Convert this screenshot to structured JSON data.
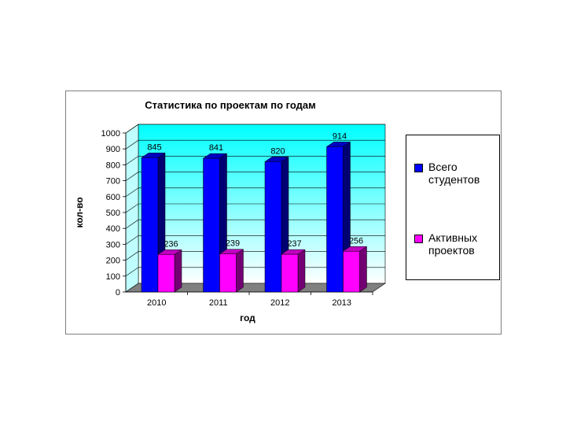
{
  "chart_data": {
    "type": "bar",
    "title": "Статистика по проектам по годам",
    "xlabel": "год",
    "ylabel": "кол-во",
    "categories": [
      "2010",
      "2011",
      "2012",
      "2013"
    ],
    "ylim": [
      0,
      1000
    ],
    "yticks": [
      0,
      100,
      200,
      300,
      400,
      500,
      600,
      700,
      800,
      900,
      1000
    ],
    "grid": true,
    "legend_position": "right",
    "three_d": true,
    "series": [
      {
        "name": "Всего студентов",
        "values": [
          845,
          841,
          820,
          914
        ],
        "color": "#0000ff"
      },
      {
        "name": "Активных проектов",
        "values": [
          236,
          239,
          237,
          256
        ],
        "color": "#ff00ff"
      }
    ],
    "colors": {
      "wall_top": "#00ffff",
      "wall_bottom": "#ffffff",
      "floor": "#808080"
    }
  }
}
